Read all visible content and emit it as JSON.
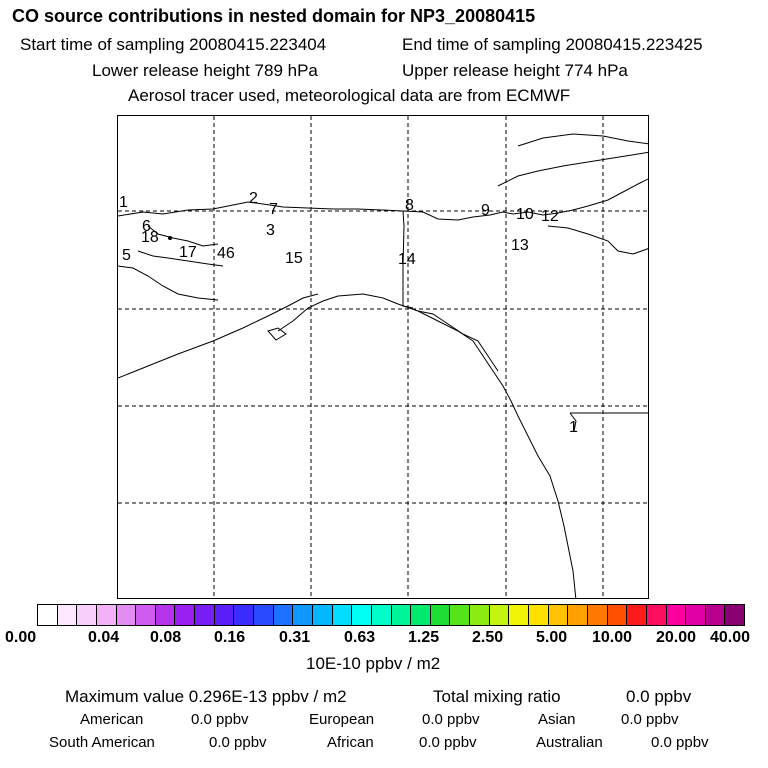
{
  "header": {
    "title": "CO  source contributions in nested domain for NP3_20080415",
    "start_time": "Start time of sampling 20080415.223404",
    "end_time": "End time of sampling 20080415.223425",
    "lower_height": "Lower release height  789 hPa",
    "upper_height": "Upper release height  774 hPa",
    "tracer_note": "Aerosol tracer used, meteorological data are from ECMWF"
  },
  "map": {
    "labels": [
      "1",
      "2",
      "7",
      "8",
      "9",
      "10",
      "12",
      "6",
      "18",
      "3",
      "17",
      "46",
      "5",
      "15",
      "14",
      "13",
      "1"
    ],
    "colors": {
      "coast": "#000000",
      "grid": "#000000"
    }
  },
  "colorbar": {
    "colors": [
      "#ffffff",
      "#fde8fe",
      "#f8cffb",
      "#f3b2f8",
      "#e38bf2",
      "#cf5cee",
      "#b434ec",
      "#9a1ff1",
      "#7a1cf5",
      "#5a1efb",
      "#3a2cfe",
      "#2a4bff",
      "#1d72ff",
      "#0e98ff",
      "#00b8ff",
      "#00ddff",
      "#00fff2",
      "#00ffc8",
      "#00f59a",
      "#00ea6e",
      "#1dde35",
      "#55e41a",
      "#8bec14",
      "#c2f40e",
      "#f2f405",
      "#ffe100",
      "#ffc300",
      "#ff9f00",
      "#ff7800",
      "#ff4f00",
      "#ff1a1a",
      "#ff0d5e",
      "#ff00a0",
      "#e000a6",
      "#b7008e",
      "#8a0072"
    ],
    "ticks": [
      "0.00",
      "0.04",
      "0.08",
      "0.16",
      "0.31",
      "0.63",
      "1.25",
      "2.50",
      "5.00",
      "10.00",
      "20.00",
      "40.00"
    ],
    "units": "10E-10 ppbv / m2"
  },
  "stats": {
    "maximum": "Maximum value  0.296E-13 ppbv / m2",
    "total_label": "Total mixing ratio",
    "total_value": "0.0 ppbv",
    "regions": [
      {
        "name": "American",
        "value": "0.0 ppbv"
      },
      {
        "name": "European",
        "value": "0.0 ppbv"
      },
      {
        "name": "Asian",
        "value": "0.0 ppbv"
      },
      {
        "name": "South American",
        "value": "0.0 ppbv"
      },
      {
        "name": "African",
        "value": "0.0 ppbv"
      },
      {
        "name": "Australian",
        "value": "0.0 ppbv"
      }
    ]
  }
}
